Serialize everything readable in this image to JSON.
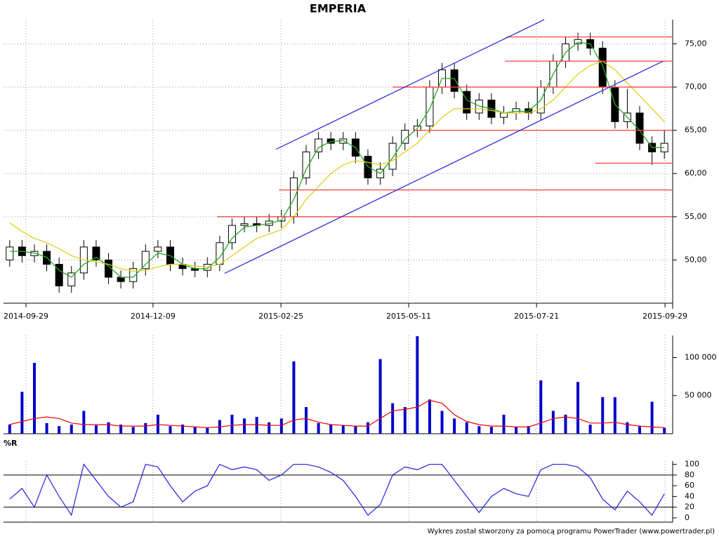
{
  "title": "EMPERIA",
  "footer": "Wykres został stworzony za pomocą programu PowerTrader (www.powertrader.pl)",
  "chart_data": [
    {
      "type": "candlestick",
      "xlim": [
        -0.5,
        53.5
      ],
      "xticks": [
        {
          "value": 1.32,
          "label": "2014-09-29"
        },
        {
          "value": 11.6,
          "label": "2014-12-09"
        },
        {
          "value": 21.96,
          "label": "2015-02-25"
        },
        {
          "value": 32.3,
          "label": "2015-05-11"
        },
        {
          "value": 42.65,
          "label": "2015-07-21"
        },
        {
          "value": 53.05,
          "label": "2015-09-29"
        }
      ],
      "ylim": [
        45,
        77.8
      ],
      "yticks": [
        {
          "value": 50,
          "label": "50,00"
        },
        {
          "value": 55,
          "label": "55,00"
        },
        {
          "value": 60,
          "label": "60,00"
        },
        {
          "value": 65,
          "label": "65,00"
        },
        {
          "value": 70,
          "label": "70,00"
        },
        {
          "value": 75,
          "label": "75,00"
        }
      ],
      "grid": true,
      "open": [
        50,
        51.5,
        50.5,
        51,
        49.5,
        47,
        48.5,
        51.5,
        50,
        48,
        47.5,
        49,
        51,
        51.5,
        49.5,
        49,
        48.8,
        49.5,
        52,
        54,
        54.2,
        54,
        54.5,
        55,
        59.5,
        62.5,
        64,
        63.5,
        64,
        62,
        59.5,
        60.5,
        63.5,
        65,
        65.5,
        70,
        72,
        69.5,
        67,
        68.5,
        66.5,
        67,
        67.5,
        67,
        70,
        73,
        75,
        75.5,
        74.5,
        70,
        66,
        67,
        63.5,
        62.5
      ],
      "high": [
        52.3,
        52.3,
        51.8,
        51.8,
        50.3,
        49.3,
        52.3,
        52.3,
        50.8,
        48.8,
        49.8,
        51.8,
        52.3,
        52.3,
        50.3,
        49.8,
        50.3,
        52.8,
        54.8,
        55,
        55,
        55.3,
        55.8,
        60.3,
        63.3,
        64.8,
        64.8,
        64.8,
        64.8,
        62.8,
        61.3,
        64.3,
        65.8,
        66.3,
        70.8,
        72.8,
        72.8,
        70.3,
        69.3,
        69.3,
        67.8,
        68.3,
        68.3,
        70.8,
        73.8,
        75.8,
        76.3,
        76.3,
        75.3,
        70.8,
        69.8,
        67.8,
        64.3,
        65
      ],
      "low": [
        49.2,
        49.7,
        49.7,
        48.7,
        46.2,
        46.2,
        47.7,
        49.2,
        47.2,
        46.7,
        46.7,
        48.2,
        50.2,
        48.7,
        48.2,
        48,
        48,
        48.7,
        51.2,
        53.2,
        53.2,
        53.2,
        53.7,
        54.2,
        58.7,
        61.7,
        62.7,
        62.7,
        61.2,
        58.7,
        58.7,
        59.7,
        62.7,
        64.2,
        64.7,
        69.2,
        68.7,
        66.2,
        66.2,
        65.7,
        65.7,
        66.2,
        66.2,
        66.2,
        69.2,
        72.2,
        74.2,
        73.7,
        69.2,
        65.2,
        65.2,
        62.7,
        61,
        61.7
      ],
      "close": [
        51.5,
        50.5,
        51,
        49.5,
        47,
        48.5,
        51.5,
        50,
        48,
        47.5,
        49,
        51,
        51.5,
        49.5,
        49,
        48.8,
        49.5,
        52,
        54,
        54.2,
        54,
        54.5,
        55,
        59.5,
        62.5,
        64,
        63.5,
        64,
        62,
        59.5,
        60.5,
        63.5,
        65,
        65.5,
        70,
        72,
        69.5,
        67,
        68.5,
        66.5,
        67,
        67.5,
        67,
        70,
        73,
        75,
        75.5,
        74.5,
        70,
        66,
        67,
        63.5,
        62.5,
        63.5
      ],
      "series": [
        {
          "color": "#22aa22",
          "values": [
            51,
            51,
            50.8,
            50.3,
            48.8,
            48,
            49.5,
            50.3,
            49.3,
            48,
            48,
            49.5,
            50.8,
            50.5,
            49.5,
            49,
            49,
            50.3,
            52.5,
            53.8,
            54,
            54.2,
            54.6,
            57,
            60.5,
            63,
            63.7,
            63.8,
            63,
            60.8,
            60,
            61.8,
            64,
            65.2,
            67.5,
            71,
            71,
            68.5,
            67.8,
            67.5,
            67,
            67.2,
            67.2,
            68.5,
            71.5,
            74,
            75.2,
            75,
            72.5,
            68,
            66.5,
            65,
            63,
            63
          ]
        },
        {
          "color": "#e0d020",
          "values": [
            54.3,
            53.3,
            52.5,
            52,
            51.3,
            50.5,
            50,
            49.8,
            49.5,
            49,
            48.7,
            48.8,
            49.2,
            49.5,
            49.5,
            49.3,
            49.2,
            49.5,
            50.5,
            51.5,
            52.5,
            53,
            53.5,
            55,
            57,
            58.5,
            60,
            61,
            61.5,
            61.3,
            61,
            61.5,
            62.5,
            63.5,
            65,
            66.5,
            67.5,
            67.5,
            67.5,
            67.3,
            67,
            67,
            67,
            67.5,
            68.5,
            70,
            71.5,
            72.5,
            73,
            72,
            70.5,
            69,
            67.5,
            66
          ]
        }
      ],
      "levels_color": "#ff4040",
      "levels": [
        {
          "value": 75.8,
          "from": 40.2
        },
        {
          "value": 73.0,
          "from": 40.1
        },
        {
          "value": 70.0,
          "from": 31.0
        },
        {
          "value": 65.0,
          "from": 32.8
        },
        {
          "value": 61.2,
          "from": 47.4
        },
        {
          "value": 58.1,
          "from": 21.8
        },
        {
          "value": 55.0,
          "from": 16.8
        }
      ],
      "trend_color": "#2020e0",
      "trend_lines": [
        {
          "x": [
            21.56,
            43.27
          ],
          "y": [
            62.8,
            77.8
          ]
        },
        {
          "x": [
            17.4,
            52.9
          ],
          "y": [
            48.45,
            73.0
          ]
        }
      ]
    },
    {
      "type": "bar",
      "ylim": [
        0,
        129000
      ],
      "yticks": [
        {
          "value": 50000,
          "label": "50 000"
        },
        {
          "value": 100000,
          "label": "100 000"
        }
      ],
      "color": "#0000cc",
      "values": [
        12000,
        55000,
        93000,
        14000,
        10000,
        12000,
        30000,
        11000,
        15000,
        12000,
        9000,
        14000,
        25000,
        10000,
        12000,
        9000,
        8000,
        18000,
        25000,
        20000,
        22000,
        15000,
        20000,
        95000,
        35000,
        14000,
        12000,
        11000,
        10000,
        15000,
        98000,
        40000,
        35000,
        128000,
        45000,
        30000,
        20000,
        15000,
        10000,
        9000,
        25000,
        9000,
        10000,
        70000,
        30000,
        25000,
        68000,
        12000,
        48000,
        48000,
        15000,
        10000,
        42000,
        8000
      ],
      "ma": {
        "color": "#ee0000",
        "values": [
          12000,
          16000,
          20000,
          22000,
          20000,
          14000,
          12000,
          12000,
          12000,
          10000,
          10000,
          10000,
          12000,
          11000,
          10000,
          9000,
          8000,
          9000,
          11000,
          12000,
          12000,
          11000,
          11000,
          18000,
          20000,
          15000,
          12000,
          11000,
          10000,
          10000,
          20000,
          30000,
          32000,
          35000,
          44000,
          40000,
          25000,
          16000,
          12000,
          10000,
          10000,
          9000,
          9000,
          14000,
          20000,
          22000,
          20000,
          14000,
          14000,
          15000,
          12000,
          10000,
          9000,
          8000
        ]
      }
    },
    {
      "type": "line",
      "title": "%R",
      "ylim": [
        -8,
        106
      ],
      "yticks": [
        0,
        20,
        40,
        60,
        80,
        100
      ],
      "color": "#2020e0",
      "values": [
        35,
        55,
        20,
        80,
        40,
        5,
        100,
        70,
        40,
        20,
        30,
        100,
        95,
        60,
        30,
        50,
        60,
        100,
        90,
        95,
        90,
        70,
        80,
        100,
        100,
        95,
        85,
        70,
        40,
        5,
        25,
        80,
        95,
        90,
        100,
        100,
        70,
        40,
        10,
        40,
        55,
        45,
        40,
        90,
        100,
        100,
        95,
        75,
        35,
        15,
        50,
        30,
        5,
        45
      ],
      "levels": [
        {
          "value": 80
        },
        {
          "value": 20
        }
      ]
    }
  ]
}
